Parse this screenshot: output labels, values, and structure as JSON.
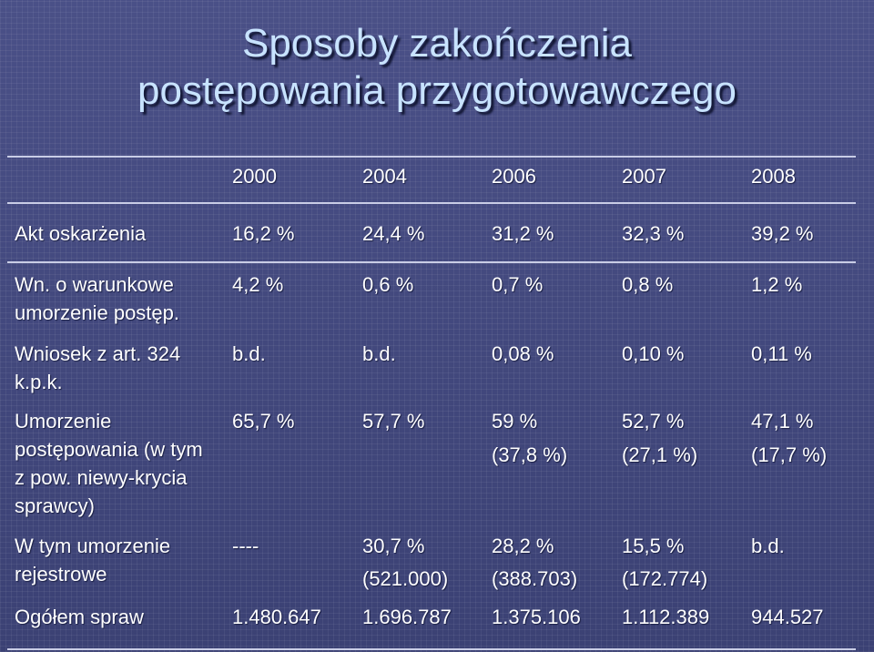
{
  "title": {
    "line1": "Sposoby zakończenia",
    "line2": "postępowania przygotowawczego"
  },
  "table": {
    "years": [
      "2000",
      "2004",
      "2006",
      "2007",
      "2008"
    ],
    "rows": [
      {
        "label": "Akt oskarżenia",
        "values": [
          "16,2 %",
          "24,4 %",
          "31,2 %",
          "32,3 %",
          "39,2 %"
        ],
        "subvalues": [
          "",
          "",
          "",
          "",
          ""
        ]
      },
      {
        "label": "Wn. o warunkowe umorzenie postęp.",
        "values": [
          "4,2 %",
          "0,6 %",
          "0,7 %",
          "0,8 %",
          "1,2 %"
        ],
        "subvalues": [
          "",
          "",
          "",
          "",
          ""
        ]
      },
      {
        "label": "Wniosek z art. 324 k.p.k.",
        "values": [
          "b.d.",
          "b.d.",
          "0,08 %",
          "0,10 %",
          "0,11 %"
        ],
        "subvalues": [
          "",
          "",
          "",
          "",
          ""
        ]
      },
      {
        "label": "Umorzenie postępowania (w tym z pow. niewy-krycia sprawcy)",
        "values": [
          "65,7 %",
          "57,7 %",
          "59 %",
          "52,7 %",
          "47,1 %"
        ],
        "subvalues": [
          "",
          "",
          "(37,8 %)",
          "(27,1 %)",
          "(17,7 %)"
        ]
      },
      {
        "label": "W tym umorzenie rejestrowe",
        "values": [
          "----",
          "30,7 %",
          "28,2 %",
          "15,5 %",
          "b.d."
        ],
        "subvalues": [
          "",
          "(521.000)",
          "(388.703)",
          "(172.774)",
          ""
        ]
      },
      {
        "label": "Ogółem spraw",
        "values": [
          "1.480.647",
          "1.696.787",
          "1.375.106",
          "1.112.389",
          "944.527"
        ],
        "subvalues": [
          "",
          "",
          "",
          "",
          ""
        ]
      }
    ]
  }
}
